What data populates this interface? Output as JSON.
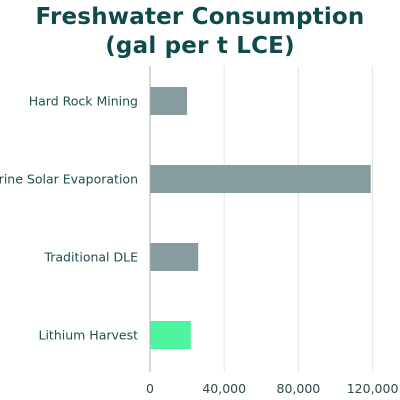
{
  "chart_data": {
    "type": "bar",
    "orientation": "horizontal",
    "title": [
      "Freshwater Consumption",
      "(gal per t LCE)"
    ],
    "categories": [
      "Hard Rock Mining",
      "Brine Solar Evaporation",
      "Traditional DLE",
      "Lithium Harvest"
    ],
    "values": [
      20000,
      119000,
      26000,
      22000
    ],
    "xticks": [
      0,
      40000,
      80000,
      120000
    ],
    "xtick_labels": [
      "0",
      "40,000",
      "80,000",
      "120,000"
    ],
    "xlim": [
      0,
      124000
    ],
    "grid": "vertical",
    "legend": "none",
    "colors": {
      "default_bar": "#869c9e",
      "highlight_bar": "#4ff59e",
      "title": "#0f4a4c",
      "label": "#1f4f50",
      "tick_label": "#2d4a4b",
      "grid": "#e3e6e6",
      "axis": "#aeb5b5"
    },
    "highlight_index": 3
  }
}
